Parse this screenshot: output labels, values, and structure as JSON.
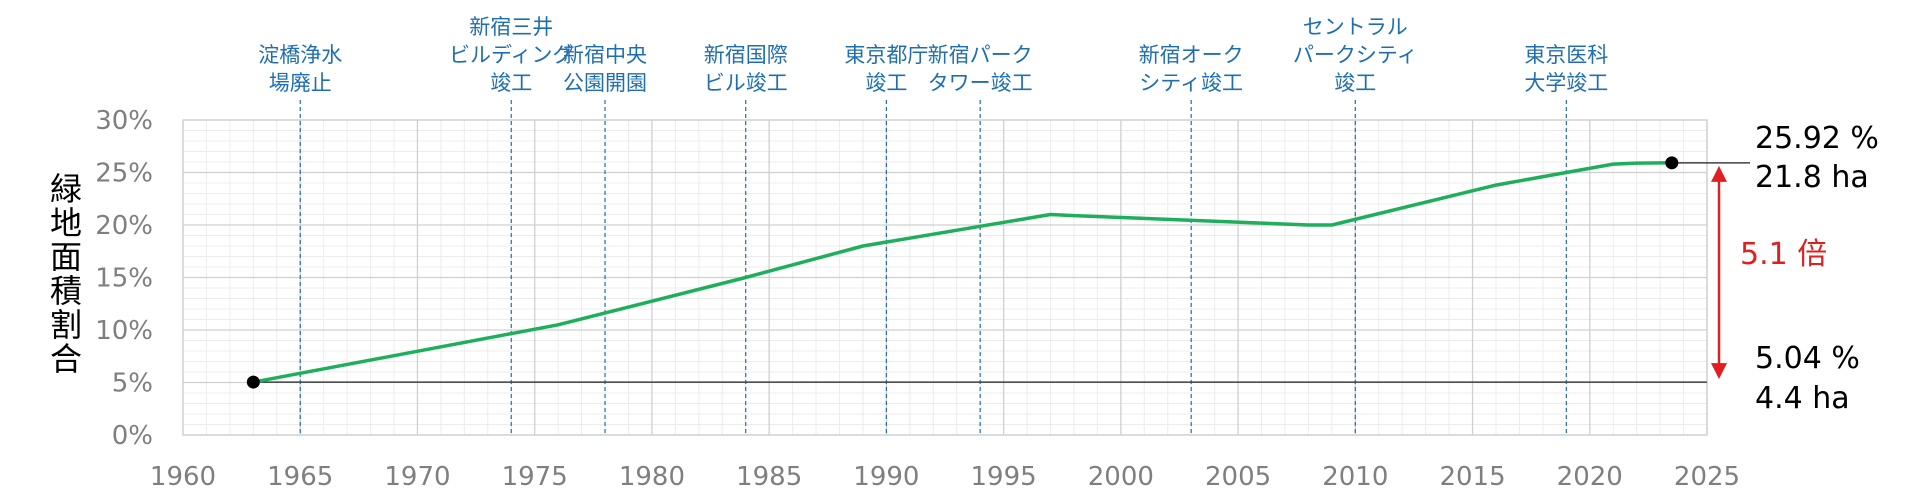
{
  "chart_data": {
    "type": "line",
    "title": "",
    "xlabel": "",
    "ylabel": "緑地面積割合",
    "xlim": [
      1960,
      2025
    ],
    "ylim": [
      0,
      30
    ],
    "x_ticks": [
      "1960",
      "1965",
      "1970",
      "1975",
      "1980",
      "1985",
      "1990",
      "1995",
      "2000",
      "2005",
      "2010",
      "2015",
      "2020",
      "2025"
    ],
    "y_ticks": [
      "0%",
      "5%",
      "10%",
      "15%",
      "20%",
      "25%",
      "30%"
    ],
    "grid": true,
    "series": [
      {
        "color": "#1fae5b",
        "points": [
          [
            1963,
            5.04
          ],
          [
            1976,
            10.5
          ],
          [
            1984,
            15.0
          ],
          [
            1989,
            18.0
          ],
          [
            1997,
            21.0
          ],
          [
            1998,
            20.9
          ],
          [
            2008,
            20.0
          ],
          [
            2009,
            20.0
          ],
          [
            2016,
            23.8
          ],
          [
            2021,
            25.8
          ],
          [
            2022,
            25.9
          ],
          [
            2023.5,
            25.92
          ]
        ]
      }
    ],
    "endpoints": {
      "start": {
        "x": 1963,
        "y": 5.04,
        "pct_label": "5.04 %",
        "area_label": "4.4 ha"
      },
      "end": {
        "x": 2023.5,
        "y": 25.92,
        "pct_label": "25.92 %",
        "area_label": "21.8 ha"
      }
    },
    "growth_label": "5.1 倍",
    "growth_color": "#e02020",
    "event_color": "#1f6fb0",
    "events": [
      {
        "year": 1965,
        "lines": [
          "淀橋浄水",
          "場廃止"
        ]
      },
      {
        "year": 1974,
        "lines": [
          "新宿三井",
          "ビルディング",
          "竣工"
        ]
      },
      {
        "year": 1978,
        "lines": [
          "新宿中央",
          "公園開園"
        ]
      },
      {
        "year": 1984,
        "lines": [
          "新宿国際",
          "ビル竣工"
        ]
      },
      {
        "year": 1990,
        "lines": [
          "東京都庁",
          "竣工"
        ]
      },
      {
        "year": 1994,
        "lines": [
          "新宿パーク",
          "タワー竣工"
        ]
      },
      {
        "year": 2003,
        "lines": [
          "新宿オーク",
          "シティ竣工"
        ]
      },
      {
        "year": 2010,
        "lines": [
          "セントラル",
          "パークシティ",
          "竣工"
        ]
      },
      {
        "year": 2019,
        "lines": [
          "東京医科",
          "大学竣工"
        ]
      }
    ]
  }
}
